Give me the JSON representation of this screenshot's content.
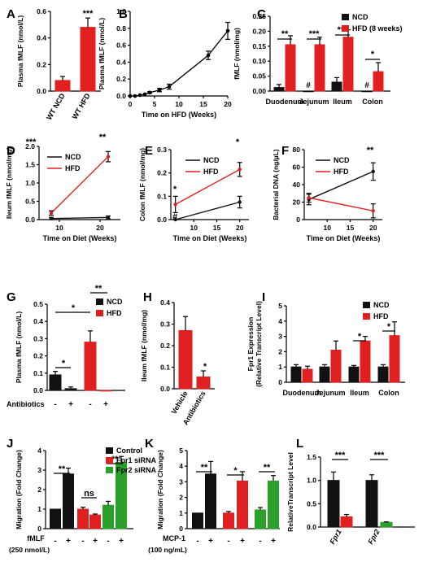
{
  "colors": {
    "ncd": "#111111",
    "hfd": "#e02020",
    "fpr2": "#2aa02a",
    "axis": "#000000"
  },
  "chart_data": [
    {
      "panel": "A",
      "type": "bar",
      "ylabel": "Plasma fMLF (nmol/L)",
      "ylim": [
        0,
        0.6
      ],
      "yticks": [
        "0.0",
        "0.2",
        "0.4",
        "0.6"
      ],
      "categories": [
        "WT NCD",
        "WT HFD"
      ],
      "series": [
        {
          "values": [
            0.08,
            0.48
          ],
          "errors": [
            0.03,
            0.07
          ]
        }
      ],
      "bar_colors": [
        "#e02020",
        "#e02020"
      ],
      "annotations": [
        {
          "text": "***"
        }
      ]
    },
    {
      "panel": "B",
      "type": "line",
      "xlabel": "Time on HFD (Weeks)",
      "ylabel": "Plasma fMLF (nmol/L)",
      "xlim": [
        0,
        20
      ],
      "ylim": [
        0,
        1.0
      ],
      "xticks": [
        "0",
        "5",
        "10",
        "15",
        "20"
      ],
      "yticks": [
        "0.0",
        "0.2",
        "0.4",
        "0.6",
        "0.8",
        "1.0"
      ],
      "x": [
        0,
        1,
        2,
        3,
        4,
        6,
        8,
        16,
        20
      ],
      "series": [
        {
          "values": [
            0.0,
            0.0,
            0.01,
            0.02,
            0.04,
            0.07,
            0.11,
            0.48,
            0.77
          ],
          "errors": [
            0,
            0,
            0,
            0,
            0.01,
            0.02,
            0.03,
            0.05,
            0.1
          ]
        }
      ]
    },
    {
      "panel": "C",
      "type": "bar",
      "ylabel": "fMLF (nmol/mg)",
      "ylim": [
        0,
        0.25
      ],
      "yticks": [
        "0.00",
        "0.05",
        "0.10",
        "0.15",
        "0.20",
        "0.25"
      ],
      "categories": [
        "Duodenum",
        "Jejunum",
        "Ileum",
        "Colon"
      ],
      "legend": [
        "NCD",
        "HFD (8 weeks)"
      ],
      "series": [
        {
          "name": "NCD",
          "values": [
            0.012,
            0.0,
            0.03,
            0.0
          ],
          "errors": [
            0.01,
            0,
            0.015,
            0
          ]
        },
        {
          "name": "HFD (8 weeks)",
          "values": [
            0.155,
            0.155,
            0.18,
            0.065
          ],
          "errors": [
            0.03,
            0.025,
            0.025,
            0.03
          ]
        }
      ],
      "annotations": [
        {
          "text": "**",
          "group": 0
        },
        {
          "text": "***",
          "group": 1
        },
        {
          "text": "***",
          "group": 2
        },
        {
          "text": "*",
          "group": 3
        },
        {
          "text": "#",
          "group": 1
        },
        {
          "text": "#",
          "group": 3
        }
      ]
    },
    {
      "panel": "D",
      "type": "line",
      "xlabel": "Time on Diet (Weeks)",
      "ylabel": "Ileum fMLF (nmol/mg)",
      "xlim": [
        5,
        25
      ],
      "ylim": [
        0,
        2.0
      ],
      "xticks": [
        "10",
        "20"
      ],
      "yticks": [
        "0.0",
        "0.5",
        "1.0",
        "1.5",
        "2.0"
      ],
      "legend": [
        "NCD",
        "HFD"
      ],
      "x": [
        8,
        22
      ],
      "series": [
        {
          "name": "NCD",
          "values": [
            0.03,
            0.06
          ],
          "errors": [
            0.03,
            0.04
          ]
        },
        {
          "name": "HFD",
          "values": [
            0.18,
            1.72
          ],
          "errors": [
            0.06,
            0.14
          ]
        }
      ],
      "annotations": [
        {
          "text": "***"
        },
        {
          "text": "**"
        }
      ]
    },
    {
      "panel": "E",
      "type": "line",
      "xlabel": "Time on Diet (Weeks)",
      "ylabel": "Colon fMLF (nmol/mg)",
      "xlim": [
        5,
        22
      ],
      "ylim": [
        0,
        0.3
      ],
      "xticks": [
        "10",
        "15",
        "20"
      ],
      "yticks": [
        "0.0",
        "0.1",
        "0.2",
        "0.3"
      ],
      "legend": [
        "NCD",
        "HFD"
      ],
      "x": [
        6,
        20
      ],
      "series": [
        {
          "name": "NCD",
          "values": [
            0.0,
            0.075
          ],
          "errors": [
            0,
            0.025
          ]
        },
        {
          "name": "HFD",
          "values": [
            0.065,
            0.215
          ],
          "errors": [
            0.035,
            0.03
          ]
        }
      ],
      "annotations": [
        {
          "text": "*"
        },
        {
          "text": "*"
        },
        {
          "text": "#"
        }
      ]
    },
    {
      "panel": "F",
      "type": "line",
      "xlabel": "Time on Diet (Weeks)",
      "ylabel": "Bacterial DNA (ng/µL)",
      "xlim": [
        5,
        22
      ],
      "ylim": [
        0,
        80
      ],
      "xticks": [
        "10",
        "15",
        "20"
      ],
      "yticks": [
        "0",
        "20",
        "40",
        "60",
        "80"
      ],
      "legend": [
        "NCD",
        "HFD"
      ],
      "x": [
        6,
        20
      ],
      "series": [
        {
          "name": "NCD",
          "values": [
            23,
            55
          ],
          "errors": [
            6,
            10
          ]
        },
        {
          "name": "HFD",
          "values": [
            25,
            10
          ],
          "errors": [
            5,
            8
          ]
        }
      ],
      "annotations": [
        {
          "text": "**"
        }
      ]
    },
    {
      "panel": "G",
      "type": "bar",
      "ylabel": "Plasma fMLF (nmol/L)",
      "ylim": [
        0,
        0.5
      ],
      "yticks": [
        "0.0",
        "0.1",
        "0.2",
        "0.3",
        "0.4",
        "0.5"
      ],
      "categories": [
        "-",
        "+",
        "-",
        "+"
      ],
      "row_label": "Antibiotics",
      "legend": [
        "NCD",
        "HFD"
      ],
      "series": [
        {
          "values": [
            0.09,
            0.01,
            0.28,
            0.0
          ],
          "errors": [
            0.02,
            0.01,
            0.065,
            0
          ]
        }
      ],
      "bar_colors": [
        "#111111",
        "#111111",
        "#e02020",
        "#e02020"
      ],
      "annotations": [
        {
          "text": "*"
        },
        {
          "text": "*"
        },
        {
          "text": "**"
        }
      ]
    },
    {
      "panel": "H",
      "type": "bar",
      "ylabel": "Ileum fMLF (nmol/mg)",
      "ylim": [
        0,
        0.4
      ],
      "yticks": [
        "0.0",
        "0.1",
        "0.2",
        "0.3",
        "0.4"
      ],
      "categories": [
        "Vehicle",
        "Antibiotics"
      ],
      "series": [
        {
          "values": [
            0.27,
            0.055
          ],
          "errors": [
            0.065,
            0.028
          ]
        }
      ],
      "bar_colors": [
        "#e02020",
        "#e02020"
      ],
      "annotations": [
        {
          "text": "*"
        }
      ]
    },
    {
      "panel": "I",
      "type": "bar",
      "ylabel": "Fpr1 Expression (Relative Transcript Level)",
      "ylabel_lines": [
        "Fpr1 Expression",
        "(Relative Transcript Level)"
      ],
      "ylim": [
        0,
        5
      ],
      "yticks": [
        "0",
        "1",
        "2",
        "3",
        "4",
        "5"
      ],
      "categories": [
        "Duodenum",
        "Jejunum",
        "Ileum",
        "Colon"
      ],
      "legend": [
        "NCD",
        "HFD"
      ],
      "series": [
        {
          "name": "NCD",
          "values": [
            1.0,
            1.0,
            1.0,
            1.0
          ],
          "errors": [
            0.15,
            0.15,
            0.1,
            0.15
          ]
        },
        {
          "name": "HFD",
          "values": [
            0.85,
            2.1,
            2.7,
            3.05
          ],
          "errors": [
            0.2,
            0.6,
            0.3,
            0.9
          ]
        }
      ],
      "annotations": [
        {
          "text": "*"
        },
        {
          "text": "*"
        }
      ]
    },
    {
      "panel": "J",
      "type": "bar",
      "ylabel": "Migration (Fold Change)",
      "ylim": [
        0,
        4
      ],
      "yticks": [
        "0",
        "1",
        "2",
        "3",
        "4"
      ],
      "categories": [
        "-",
        "+",
        "-",
        "+",
        "-",
        "+"
      ],
      "row_label": "fMLF",
      "row_sublabel": "(250 nmol/L)",
      "legend": [
        "Control",
        "Fpr1 siRNA",
        "Fpr2 siRNA"
      ],
      "series": [
        {
          "values": [
            1.0,
            2.8,
            1.0,
            0.7,
            1.2,
            3.4
          ],
          "errors": [
            0,
            0.3,
            0.1,
            0.05,
            0.2,
            0.3
          ]
        }
      ],
      "bar_colors": [
        "#111111",
        "#111111",
        "#e02020",
        "#e02020",
        "#2aa02a",
        "#2aa02a"
      ],
      "annotations": [
        {
          "text": "**"
        },
        {
          "text": "ns"
        },
        {
          "text": "**"
        }
      ]
    },
    {
      "panel": "K",
      "type": "bar",
      "ylabel": "Migration (Fold Change)",
      "ylim": [
        0,
        5
      ],
      "yticks": [
        "0",
        "1",
        "2",
        "3",
        "4",
        "5"
      ],
      "categories": [
        "-",
        "+",
        "-",
        "+",
        "-",
        "+"
      ],
      "row_label": "MCP-1",
      "row_sublabel": "(100 ng/mL)",
      "series": [
        {
          "values": [
            1.0,
            3.5,
            1.0,
            3.05,
            1.2,
            3.05
          ],
          "errors": [
            0,
            0.8,
            0.1,
            0.6,
            0.15,
            0.35
          ]
        }
      ],
      "bar_colors": [
        "#111111",
        "#111111",
        "#e02020",
        "#e02020",
        "#2aa02a",
        "#2aa02a"
      ],
      "annotations": [
        {
          "text": "**"
        },
        {
          "text": "*"
        },
        {
          "text": "**"
        }
      ]
    },
    {
      "panel": "L",
      "type": "bar",
      "ylabel": "RelativeTranscript Level",
      "ylim": [
        0,
        1.5
      ],
      "yticks": [
        "0.0",
        "0.5",
        "1.0",
        "1.5"
      ],
      "categories": [
        "Fpr1",
        "Fpr2"
      ],
      "series": [
        {
          "values": [
            1.0,
            0.22
          ],
          "errors": [
            0.18,
            0.05
          ]
        },
        {
          "values": [
            1.0,
            0.1
          ],
          "errors": [
            0.12,
            0.01
          ]
        }
      ],
      "bar_colors": [
        "#111111",
        "#e02020",
        "#111111",
        "#2aa02a"
      ],
      "annotations": [
        {
          "text": "***"
        },
        {
          "text": "***"
        }
      ]
    }
  ]
}
